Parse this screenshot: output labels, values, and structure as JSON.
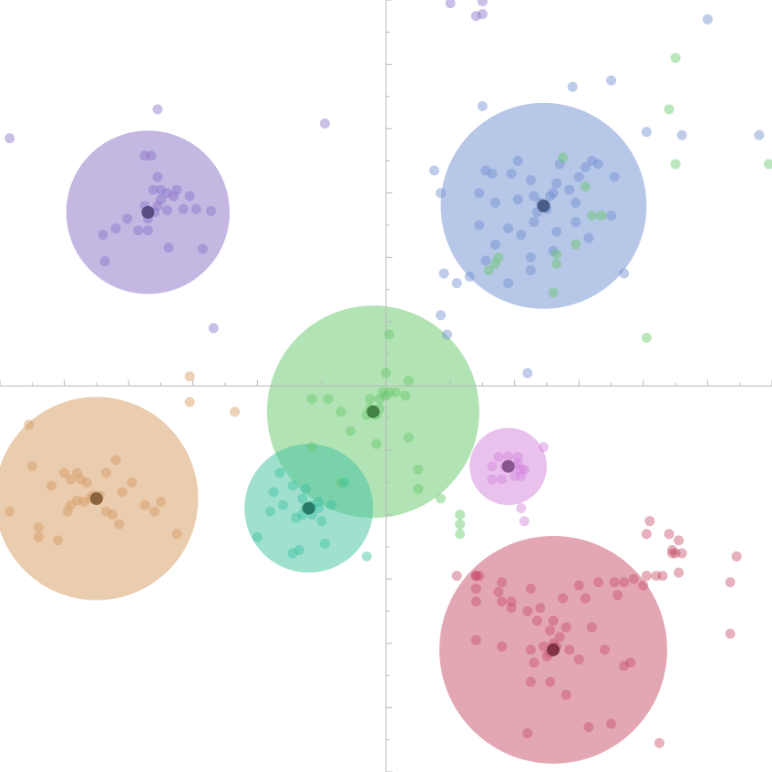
{
  "chart_data": {
    "type": "scatter",
    "title": "",
    "xlabel": "",
    "ylabel": "",
    "xlim": [
      -6,
      6
    ],
    "ylim": [
      -6,
      6
    ],
    "grid": false,
    "legend": "none",
    "axes_origin": [
      0,
      0
    ],
    "tick_step": 0.5,
    "major_tick_step": 1,
    "tick_labels": "none",
    "series": [
      {
        "color": "#8a72c8",
        "circle": {
          "center": [
            -3.7,
            2.7
          ],
          "radius": 1.27
        },
        "centroid": [
          -3.7,
          2.7
        ],
        "points": [
          [
            -3.75,
            3.58
          ],
          [
            -3.65,
            3.58
          ],
          [
            -3.55,
            3.25
          ],
          [
            -3.62,
            3.05
          ],
          [
            -3.5,
            3.05
          ],
          [
            -3.4,
            3.0
          ],
          [
            -3.3,
            2.95
          ],
          [
            -3.25,
            3.05
          ],
          [
            -3.5,
            2.9
          ],
          [
            -3.55,
            2.8
          ],
          [
            -3.75,
            2.8
          ],
          [
            -3.7,
            2.6
          ],
          [
            -3.6,
            2.7
          ],
          [
            -3.4,
            2.73
          ],
          [
            -3.15,
            2.75
          ],
          [
            -3.05,
            2.95
          ],
          [
            -2.95,
            2.75
          ],
          [
            -2.72,
            2.72
          ],
          [
            -4.02,
            2.6
          ],
          [
            -4.2,
            2.45
          ],
          [
            -3.85,
            2.42
          ],
          [
            -3.7,
            2.42
          ],
          [
            -4.4,
            2.35
          ],
          [
            -3.38,
            2.15
          ],
          [
            -2.85,
            2.13
          ],
          [
            -4.37,
            1.94
          ],
          [
            -5.85,
            3.85
          ],
          [
            -3.55,
            4.3
          ],
          [
            -2.68,
            0.9
          ],
          [
            -0.95,
            4.08
          ],
          [
            1.0,
            5.95
          ],
          [
            1.4,
            5.75
          ],
          [
            1.5,
            5.78
          ],
          [
            1.5,
            5.98
          ]
        ]
      },
      {
        "color": "#6f8fd0",
        "circle": {
          "center": [
            2.45,
            2.8
          ],
          "radius": 1.6
        },
        "centroid": [
          2.45,
          2.8
        ],
        "points": [
          [
            2.45,
            2.8
          ],
          [
            2.4,
            2.85
          ],
          [
            2.5,
            2.75
          ],
          [
            2.35,
            2.7
          ],
          [
            2.55,
            2.95
          ],
          [
            2.3,
            2.95
          ],
          [
            2.6,
            3.0
          ],
          [
            2.25,
            3.2
          ],
          [
            2.65,
            3.15
          ],
          [
            2.85,
            3.05
          ],
          [
            2.95,
            2.85
          ],
          [
            3.0,
            3.25
          ],
          [
            3.1,
            3.4
          ],
          [
            3.2,
            3.5
          ],
          [
            3.3,
            3.45
          ],
          [
            3.55,
            3.25
          ],
          [
            2.7,
            3.45
          ],
          [
            2.05,
            3.5
          ],
          [
            1.95,
            3.3
          ],
          [
            1.65,
            3.3
          ],
          [
            1.55,
            3.35
          ],
          [
            1.45,
            3.0
          ],
          [
            1.7,
            2.85
          ],
          [
            2.05,
            2.9
          ],
          [
            2.3,
            2.55
          ],
          [
            2.1,
            2.35
          ],
          [
            1.9,
            2.45
          ],
          [
            1.7,
            2.2
          ],
          [
            1.45,
            2.5
          ],
          [
            2.65,
            2.4
          ],
          [
            2.95,
            2.55
          ],
          [
            3.15,
            2.3
          ],
          [
            3.5,
            2.65
          ],
          [
            2.6,
            2.1
          ],
          [
            2.25,
            2.0
          ],
          [
            2.25,
            1.8
          ],
          [
            1.9,
            1.6
          ],
          [
            1.55,
            1.95
          ],
          [
            1.3,
            1.7
          ],
          [
            1.1,
            1.6
          ],
          [
            0.85,
            3.0
          ],
          [
            0.9,
            1.75
          ],
          [
            0.75,
            3.35
          ],
          [
            1.5,
            4.35
          ],
          [
            2.9,
            4.65
          ],
          [
            3.5,
            4.75
          ],
          [
            4.05,
            3.95
          ],
          [
            4.6,
            3.9
          ],
          [
            5.0,
            5.7
          ],
          [
            5.8,
            3.9
          ],
          [
            2.2,
            0.2
          ],
          [
            3.7,
            1.75
          ],
          [
            0.95,
            0.8
          ],
          [
            0.85,
            1.1
          ]
        ]
      },
      {
        "color": "#65c86a",
        "circle": {
          "center": [
            -0.2,
            -0.4
          ],
          "radius": 1.65
        },
        "centroid": [
          -0.2,
          -0.4
        ],
        "points": [
          [
            -0.2,
            -0.4
          ],
          [
            -0.25,
            -0.35
          ],
          [
            -0.15,
            -0.45
          ],
          [
            -0.3,
            -0.45
          ],
          [
            -0.1,
            -0.35
          ],
          [
            -0.05,
            -0.1
          ],
          [
            0.0,
            -0.15
          ],
          [
            0.05,
            -0.1
          ],
          [
            0.15,
            -0.1
          ],
          [
            0.3,
            -0.15
          ],
          [
            0.35,
            0.08
          ],
          [
            0.0,
            0.2
          ],
          [
            -0.25,
            -0.2
          ],
          [
            -0.1,
            -0.2
          ],
          [
            -0.9,
            -0.2
          ],
          [
            -1.15,
            -0.2
          ],
          [
            -0.7,
            -0.4
          ],
          [
            -0.55,
            -0.7
          ],
          [
            -0.15,
            -0.9
          ],
          [
            0.35,
            -0.8
          ],
          [
            -1.15,
            -0.95
          ],
          [
            -0.7,
            -1.5
          ],
          [
            0.5,
            -1.3
          ],
          [
            0.5,
            -1.6
          ],
          [
            0.85,
            -1.75
          ],
          [
            0.05,
            0.8
          ],
          [
            1.15,
            -2.0
          ],
          [
            1.15,
            -2.15
          ],
          [
            1.15,
            -2.3
          ],
          [
            2.75,
            3.55
          ],
          [
            3.1,
            3.1
          ],
          [
            3.2,
            2.65
          ],
          [
            2.95,
            2.2
          ],
          [
            2.65,
            2.05
          ],
          [
            2.65,
            1.9
          ],
          [
            3.35,
            2.65
          ],
          [
            2.6,
            1.45
          ],
          [
            1.7,
            1.9
          ],
          [
            1.75,
            2.0
          ],
          [
            1.6,
            1.8
          ],
          [
            4.4,
            4.3
          ],
          [
            4.5,
            3.45
          ],
          [
            4.5,
            5.1
          ],
          [
            5.95,
            3.45
          ],
          [
            4.05,
            0.75
          ]
        ]
      },
      {
        "color": "#3fc1a0",
        "circle": {
          "center": [
            -1.2,
            -1.9
          ],
          "radius": 1.0
        },
        "centroid": [
          -1.2,
          -1.9
        ],
        "points": [
          [
            -1.2,
            -1.9
          ],
          [
            -1.25,
            -1.9
          ],
          [
            -1.15,
            -1.85
          ],
          [
            -1.3,
            -1.75
          ],
          [
            -1.05,
            -1.9
          ],
          [
            -1.3,
            -2.0
          ],
          [
            -1.15,
            -2.0
          ],
          [
            -1.4,
            -2.05
          ],
          [
            -1.45,
            -1.55
          ],
          [
            -1.65,
            -1.35
          ],
          [
            -1.75,
            -1.65
          ],
          [
            -1.6,
            -1.85
          ],
          [
            -1.8,
            -1.95
          ],
          [
            -1.25,
            -1.6
          ],
          [
            -1.05,
            -1.8
          ],
          [
            -0.85,
            -1.85
          ],
          [
            -0.65,
            -1.5
          ],
          [
            -1.0,
            -2.1
          ],
          [
            -0.95,
            -2.45
          ],
          [
            -1.35,
            -2.55
          ],
          [
            -1.45,
            -2.6
          ],
          [
            -2.0,
            -2.35
          ],
          [
            -0.3,
            -2.65
          ]
        ]
      },
      {
        "color": "#d59a5f",
        "circle": {
          "center": [
            -4.5,
            -1.75
          ],
          "radius": 1.58
        },
        "centroid": [
          -4.5,
          -1.75
        ],
        "points": [
          [
            -4.5,
            -1.75
          ],
          [
            -4.55,
            -1.7
          ],
          [
            -4.6,
            -1.75
          ],
          [
            -4.45,
            -1.7
          ],
          [
            -4.7,
            -1.8
          ],
          [
            -4.8,
            -1.78
          ],
          [
            -4.9,
            -1.85
          ],
          [
            -4.65,
            -1.5
          ],
          [
            -4.8,
            -1.35
          ],
          [
            -4.9,
            -1.45
          ],
          [
            -5.0,
            -1.35
          ],
          [
            -4.75,
            -1.45
          ],
          [
            -5.2,
            -1.55
          ],
          [
            -4.35,
            -1.35
          ],
          [
            -4.2,
            -1.15
          ],
          [
            -3.95,
            -1.5
          ],
          [
            -4.1,
            -1.65
          ],
          [
            -4.35,
            -1.95
          ],
          [
            -4.25,
            -2.0
          ],
          [
            -4.15,
            -2.15
          ],
          [
            -3.75,
            -1.85
          ],
          [
            -3.6,
            -1.95
          ],
          [
            -3.5,
            -1.8
          ],
          [
            -3.25,
            -2.3
          ],
          [
            -5.4,
            -2.2
          ],
          [
            -5.4,
            -2.35
          ],
          [
            -5.1,
            -2.4
          ],
          [
            -4.95,
            -1.95
          ],
          [
            -5.85,
            -1.95
          ],
          [
            -5.5,
            -1.25
          ],
          [
            -5.55,
            -0.6
          ],
          [
            -3.05,
            0.15
          ],
          [
            -3.05,
            -0.25
          ],
          [
            -2.35,
            -0.4
          ]
        ]
      },
      {
        "color": "#d383dc",
        "circle": {
          "center": [
            1.9,
            -1.25
          ],
          "radius": 0.6
        },
        "centroid": [
          1.9,
          -1.25
        ],
        "points": [
          [
            1.9,
            -1.25
          ],
          [
            1.85,
            -1.25
          ],
          [
            2.0,
            -1.25
          ],
          [
            2.05,
            -1.2
          ],
          [
            2.1,
            -1.3
          ],
          [
            2.0,
            -1.4
          ],
          [
            1.9,
            -1.1
          ],
          [
            2.05,
            -1.1
          ],
          [
            1.75,
            -1.1
          ],
          [
            1.65,
            -1.25
          ],
          [
            1.65,
            -1.45
          ],
          [
            1.8,
            -1.45
          ],
          [
            2.1,
            -1.4
          ],
          [
            2.15,
            -1.3
          ],
          [
            2.45,
            -0.95
          ],
          [
            2.1,
            -1.9
          ],
          [
            2.15,
            -2.1
          ]
        ]
      },
      {
        "color": "#c7506a",
        "circle": {
          "center": [
            2.6,
            -4.1
          ],
          "radius": 1.77
        },
        "centroid": [
          2.6,
          -4.1
        ],
        "points": [
          [
            2.6,
            -4.1
          ],
          [
            2.55,
            -4.15
          ],
          [
            2.65,
            -4.05
          ],
          [
            2.6,
            -4.0
          ],
          [
            2.5,
            -4.2
          ],
          [
            2.45,
            -4.05
          ],
          [
            2.7,
            -3.9
          ],
          [
            2.55,
            -3.8
          ],
          [
            2.8,
            -3.75
          ],
          [
            2.6,
            -3.65
          ],
          [
            2.35,
            -3.65
          ],
          [
            2.2,
            -3.5
          ],
          [
            1.95,
            -3.35
          ],
          [
            2.25,
            -3.15
          ],
          [
            2.4,
            -3.45
          ],
          [
            2.75,
            -3.3
          ],
          [
            3.0,
            -3.1
          ],
          [
            3.1,
            -3.3
          ],
          [
            3.3,
            -3.05
          ],
          [
            3.55,
            -3.05
          ],
          [
            3.7,
            -3.05
          ],
          [
            3.85,
            -3.0
          ],
          [
            4.05,
            -2.95
          ],
          [
            4.2,
            -2.95
          ],
          [
            3.6,
            -3.25
          ],
          [
            4.0,
            -3.1
          ],
          [
            1.8,
            -3.35
          ],
          [
            1.75,
            -3.2
          ],
          [
            1.8,
            -3.05
          ],
          [
            1.4,
            -3.35
          ],
          [
            1.4,
            -3.15
          ],
          [
            1.95,
            -3.45
          ],
          [
            1.4,
            -3.95
          ],
          [
            1.8,
            -4.05
          ],
          [
            2.25,
            -4.1
          ],
          [
            2.3,
            -4.3
          ],
          [
            2.85,
            -4.1
          ],
          [
            3.0,
            -4.25
          ],
          [
            3.4,
            -4.1
          ],
          [
            3.7,
            -4.35
          ],
          [
            3.8,
            -4.3
          ],
          [
            2.25,
            -4.6
          ],
          [
            2.55,
            -4.6
          ],
          [
            2.8,
            -4.8
          ],
          [
            2.2,
            -5.4
          ],
          [
            3.15,
            -5.3
          ],
          [
            3.5,
            -5.25
          ],
          [
            4.25,
            -5.55
          ],
          [
            1.4,
            -2.95
          ],
          [
            1.4,
            -2.95
          ],
          [
            1.1,
            -2.95
          ],
          [
            4.1,
            -2.1
          ],
          [
            4.4,
            -2.3
          ],
          [
            4.45,
            -2.55
          ],
          [
            4.45,
            -2.6
          ],
          [
            4.5,
            -2.6
          ],
          [
            4.6,
            -2.6
          ],
          [
            4.55,
            -2.4
          ],
          [
            4.3,
            -2.95
          ],
          [
            4.55,
            -2.9
          ],
          [
            5.35,
            -3.05
          ],
          [
            5.45,
            -2.65
          ],
          [
            5.35,
            -3.85
          ],
          [
            4.05,
            -2.3
          ],
          [
            3.2,
            -3.75
          ],
          [
            1.45,
            -2.95
          ]
        ]
      }
    ]
  }
}
